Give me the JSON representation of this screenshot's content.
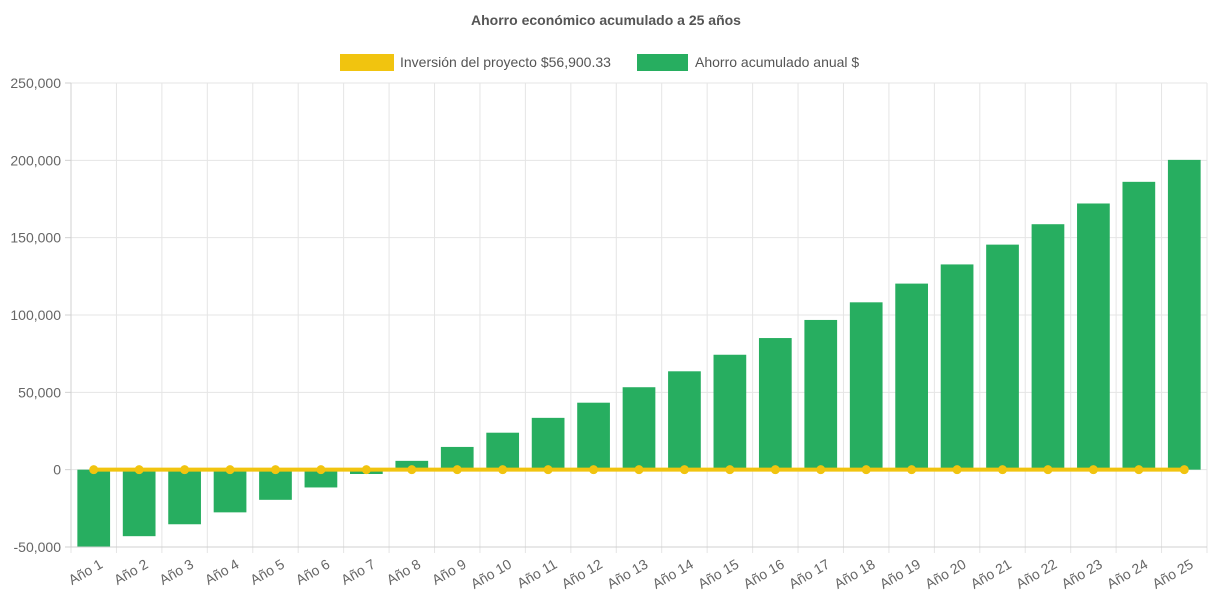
{
  "chart_data": {
    "type": "bar",
    "title": "Ahorro económico acumulado a 25 años",
    "categories": [
      "Año 1",
      "Año 2",
      "Año 3",
      "Año 4",
      "Año 5",
      "Año 6",
      "Año 7",
      "Año 8",
      "Año 9",
      "Año 10",
      "Año 11",
      "Año 12",
      "Año 13",
      "Año 14",
      "Año 15",
      "Año 16",
      "Año 17",
      "Año 18",
      "Año 19",
      "Año 20",
      "Año 21",
      "Año 22",
      "Año 23",
      "Año 24",
      "Año 25"
    ],
    "series": [
      {
        "name": "Inversión del proyecto $56,900.33",
        "type": "line",
        "color": "#f1c40f",
        "values": [
          0,
          0,
          0,
          0,
          0,
          0,
          0,
          0,
          0,
          0,
          0,
          0,
          0,
          0,
          0,
          0,
          0,
          0,
          0,
          0,
          0,
          0,
          0,
          0,
          0
        ]
      },
      {
        "name": "Ahorro acumulado anual $",
        "type": "bar",
        "color": "#27ae60",
        "values": [
          -50800,
          -43000,
          -35300,
          -27600,
          -19500,
          -11500,
          -2800,
          5700,
          14700,
          23900,
          33500,
          43300,
          53300,
          63600,
          74300,
          85100,
          96800,
          108200,
          120300,
          132700,
          145500,
          158700,
          172100,
          186100,
          200300
        ]
      }
    ],
    "ylim": [
      -50000,
      250000
    ],
    "yticks": [
      -50000,
      0,
      50000,
      100000,
      150000,
      200000,
      250000
    ],
    "ytick_labels": [
      "-50,000",
      "0",
      "50,000",
      "100,000",
      "150,000",
      "200,000",
      "250,000"
    ],
    "grid": true,
    "legend": "top-center",
    "xlabel": "",
    "ylabel": ""
  }
}
